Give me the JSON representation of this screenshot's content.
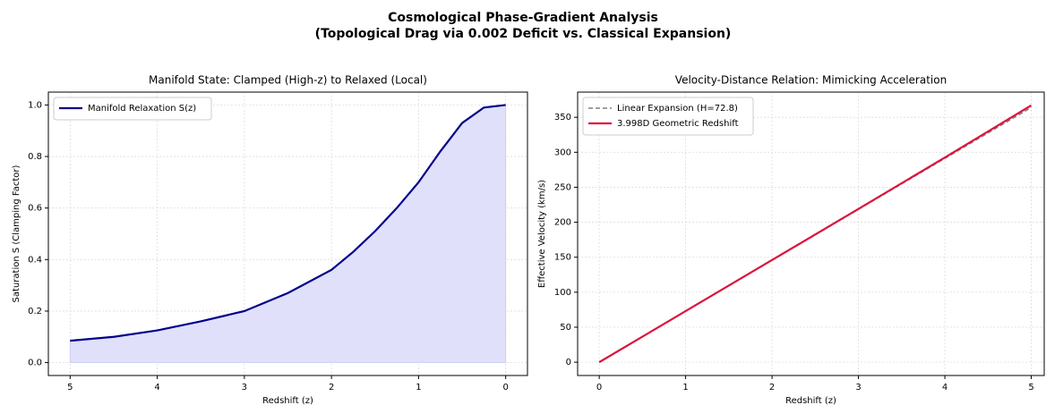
{
  "title": [
    "Cosmological Phase-Gradient Analysis",
    "(Topological Drag via 0.002 Deficit vs. Classical Expansion)"
  ],
  "chart_data": [
    {
      "type": "line",
      "title": "Manifold State: Clamped (High-z) to Relaxed (Local)",
      "xlabel": "Redshift (z)",
      "ylabel": "Saturation S (Clamping Factor)",
      "x": [
        0,
        0.25,
        0.5,
        0.75,
        1.0,
        1.25,
        1.5,
        1.75,
        2.0,
        2.5,
        3.0,
        3.5,
        4.0,
        4.5,
        5.0
      ],
      "series": [
        {
          "name": "Manifold Relaxation S(z)",
          "color": "#00008b",
          "fill": "#e0e0fb",
          "values": [
            1.0,
            0.99,
            0.93,
            0.82,
            0.7,
            0.6,
            0.51,
            0.43,
            0.36,
            0.27,
            0.2,
            0.16,
            0.125,
            0.1,
            0.085
          ]
        }
      ],
      "xlim": [
        5.25,
        -0.25
      ],
      "xticks": [
        5,
        4,
        3,
        2,
        1,
        0
      ],
      "ylim": [
        -0.05,
        1.05
      ],
      "yticks": [
        {
          "value": 0,
          "label": "0.0"
        },
        0.2,
        0.4,
        0.6,
        0.8,
        {
          "value": 1,
          "label": "1.0"
        }
      ],
      "grid": true,
      "legend": "upper left"
    },
    {
      "type": "line",
      "title": "Velocity-Distance Relation: Mimicking Acceleration",
      "xlabel": "Redshift (z)",
      "ylabel": "Effective Velocity (km/s)",
      "x": [
        0,
        1,
        2,
        3,
        4,
        5
      ],
      "series": [
        {
          "name": "Linear Expansion (H=72.8)",
          "color": "#808080",
          "linestyle": "dashed",
          "values": [
            0,
            72.8,
            145.6,
            218.4,
            291.2,
            364
          ]
        },
        {
          "name": "3.998D Geometric Redshift",
          "color": "#dc143c",
          "values": [
            0,
            73,
            146,
            219,
            292.5,
            367
          ]
        }
      ],
      "xlim": [
        -0.25,
        5.15
      ],
      "xticks": [
        0,
        1,
        2,
        3,
        4,
        5
      ],
      "ylim": [
        -19,
        386
      ],
      "yticks": [
        0,
        50,
        100,
        150,
        200,
        250,
        300,
        350
      ],
      "grid": true,
      "legend": "upper left"
    }
  ]
}
